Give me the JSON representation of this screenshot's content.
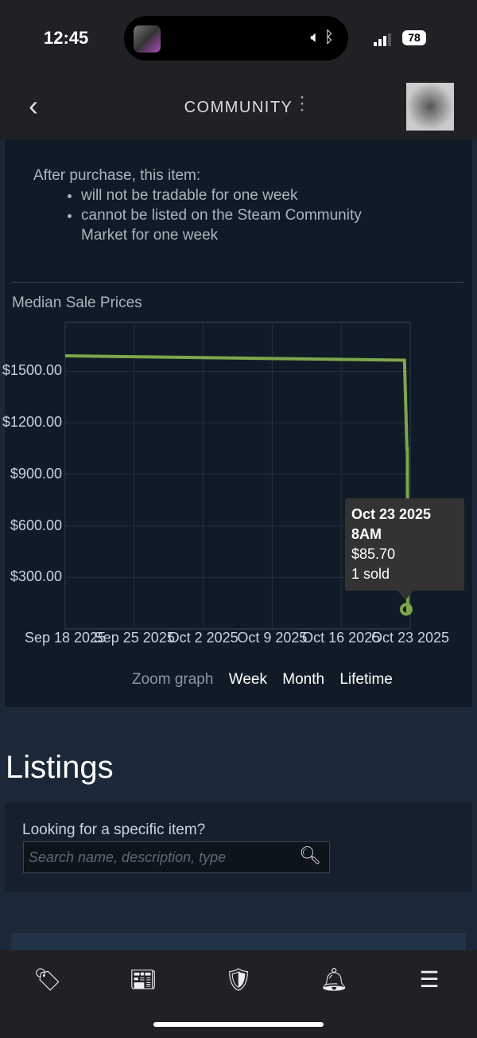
{
  "status_bar": {
    "time": "12:45",
    "battery": "78"
  },
  "header": {
    "title": "COMMUNITY"
  },
  "description": {
    "intro": "After purchase, this item:",
    "bullets": [
      "will not be tradable for one week",
      "cannot be listed on the Steam Community Market for one week"
    ]
  },
  "chart_title": "Median Sale Prices",
  "chart_data": {
    "type": "line",
    "title": "Median Sale Prices",
    "y_ticks": [
      "$1500.00",
      "$1200.00",
      "$900.00",
      "$600.00",
      "$300.00"
    ],
    "y_tick_values": [
      1500,
      1200,
      900,
      600,
      300
    ],
    "x_ticks": [
      "Sep 18 2025",
      "Sep 25 2025",
      "Oct 2 2025",
      "Oct 9 2025",
      "Oct 16 2025",
      "Oct 23 2025"
    ],
    "x_tick_dates": [
      "2025-09-18T00:00",
      "2025-09-25T00:00",
      "2025-10-02T00:00",
      "2025-10-09T00:00",
      "2025-10-16T00:00",
      "2025-10-23T00:00"
    ],
    "xlim": [
      "2025-09-18T00:00",
      "2025-10-23T00:00"
    ],
    "ylim": [
      0,
      1785
    ],
    "grid": true,
    "line_color": "#7ea64b",
    "points": [
      [
        "2025-09-18T00:00",
        1590
      ],
      [
        "2025-10-22T10:00",
        1565
      ],
      [
        "2025-10-22T16:00",
        1050
      ],
      [
        "2025-10-22T17:00",
        1050
      ],
      [
        "2025-10-22T18:00",
        85.7
      ]
    ],
    "tooltip": {
      "date": "Oct 23 2025",
      "time": "8AM",
      "price": "$85.70",
      "sold": "1 sold"
    }
  },
  "zoom": {
    "label": "Zoom graph",
    "options": [
      "Week",
      "Month",
      "Lifetime"
    ]
  },
  "listings": {
    "title": "Listings",
    "search_label": "Looking for a specific item?",
    "search_placeholder": "Search name, description, type"
  },
  "bottom_nav": [
    {
      "icon": "tag-icon"
    },
    {
      "icon": "news-icon"
    },
    {
      "icon": "shield-icon"
    },
    {
      "icon": "bell-icon"
    },
    {
      "icon": "menu-icon"
    }
  ]
}
